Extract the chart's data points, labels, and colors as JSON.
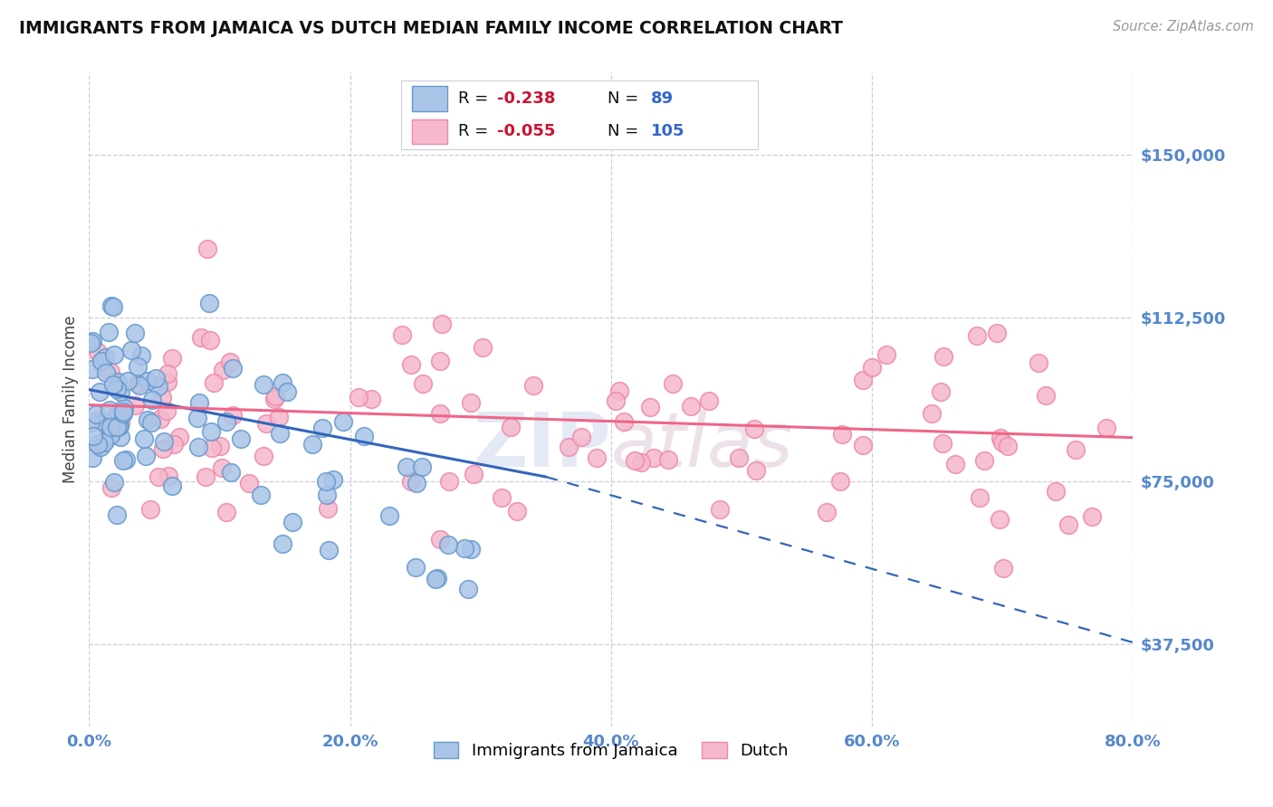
{
  "title": "IMMIGRANTS FROM JAMAICA VS DUTCH MEDIAN FAMILY INCOME CORRELATION CHART",
  "source_text": "Source: ZipAtlas.com",
  "ylabel": "Median Family Income",
  "watermark_zip": "ZIP",
  "watermark_atlas": "atlas",
  "xmin": 0.0,
  "xmax": 80.0,
  "ymin": 18750,
  "ymax": 168750,
  "yticks": [
    37500,
    75000,
    112500,
    150000
  ],
  "ytick_labels": [
    "$37,500",
    "$75,000",
    "$112,500",
    "$150,000"
  ],
  "xticks": [
    0.0,
    20.0,
    40.0,
    60.0,
    80.0
  ],
  "xtick_labels": [
    "0.0%",
    "20.0%",
    "40.0%",
    "60.0%",
    "80.0%"
  ],
  "series1_color": "#aac4e8",
  "series1_edge": "#6699cc",
  "series1_label": "Immigrants from Jamaica",
  "series1_R": "-0.238",
  "series1_N": "89",
  "series1_line_color": "#3366bb",
  "series2_color": "#f5b8cc",
  "series2_edge": "#ee88aa",
  "series2_label": "Dutch",
  "series2_R": "-0.055",
  "series2_N": "105",
  "series2_line_color": "#ee6688",
  "grid_color": "#ccccdd",
  "background_color": "#ffffff",
  "title_color": "#111111",
  "axis_label_color": "#5588cc",
  "legend_R_color": "#cc1133",
  "legend_N_color": "#3366cc",
  "blue_trend_x0": 0,
  "blue_trend_y0": 96000,
  "blue_trend_x1": 35,
  "blue_trend_y1": 76000,
  "blue_trend_xdash": 80,
  "blue_trend_ydash": 38000,
  "pink_trend_x0": 0,
  "pink_trend_y0": 92500,
  "pink_trend_x1": 80,
  "pink_trend_y1": 85000
}
